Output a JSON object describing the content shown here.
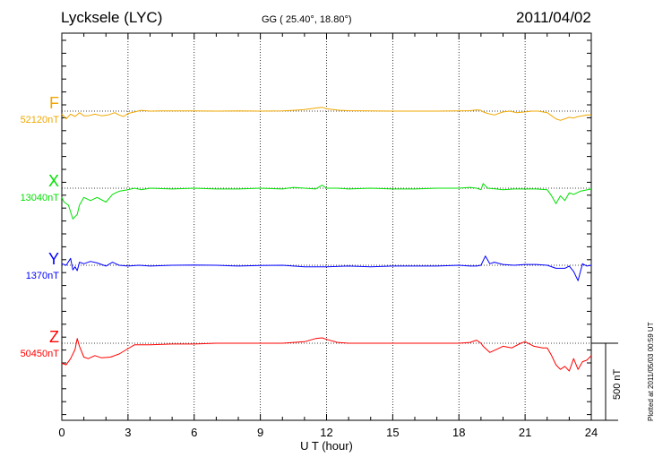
{
  "header": {
    "station": "Lycksele (LYC)",
    "coords": "GG ( 25.40°,  18.80°)",
    "date": "2011/04/02"
  },
  "plotted_note": "Plotted at 2011/05/03 00:59 UT",
  "scale_label": "500 nT",
  "chart_data": {
    "type": "line",
    "xlabel": "U T (hour)",
    "xlim": [
      0,
      24
    ],
    "xticks": [
      "0",
      "3",
      "6",
      "9",
      "12",
      "15",
      "18",
      "21",
      "24"
    ],
    "grid": true,
    "scale_bar_nT": 500,
    "series": [
      {
        "name": "F",
        "baseline": "52120nT",
        "color": "#f0a800",
        "x": [
          0,
          0.2,
          0.4,
          0.6,
          0.8,
          1.0,
          1.2,
          1.5,
          1.8,
          2.1,
          2.4,
          2.6,
          2.8,
          3.0,
          3.3,
          3.6,
          4.0,
          4.5,
          5,
          6,
          7,
          8,
          9,
          10,
          10.5,
          11,
          11.5,
          11.8,
          12,
          12.3,
          12.6,
          13,
          14,
          15,
          16,
          17,
          18,
          18.5,
          18.8,
          19,
          19.1,
          19.3,
          19.6,
          20,
          20.3,
          20.6,
          21,
          21.3,
          21.6,
          22,
          22.2,
          22.4,
          22.6,
          22.8,
          23,
          23.2,
          23.4,
          23.6,
          23.8,
          24
        ],
        "y": [
          -20,
          -50,
          -20,
          -35,
          -10,
          -30,
          -30,
          -20,
          -30,
          -25,
          -10,
          -25,
          -35,
          -15,
          -5,
          5,
          0,
          2,
          2,
          2,
          0,
          2,
          0,
          2,
          5,
          10,
          20,
          25,
          15,
          10,
          5,
          3,
          1,
          0,
          0,
          0,
          2,
          3,
          8,
          5,
          -5,
          -15,
          -25,
          -5,
          0,
          -10,
          -5,
          0,
          0,
          -10,
          -30,
          -50,
          -60,
          -50,
          -40,
          -45,
          -35,
          -30,
          -25,
          -25
        ]
      },
      {
        "name": "X",
        "baseline": "13040nT",
        "color": "#00e000",
        "x": [
          0,
          0.1,
          0.3,
          0.5,
          0.7,
          0.8,
          1.0,
          1.3,
          1.6,
          2.0,
          2.3,
          2.6,
          3.0,
          3.3,
          3.6,
          4.0,
          5,
          6,
          7,
          8,
          9,
          10,
          10.5,
          11,
          11.5,
          11.8,
          12,
          12.5,
          13,
          14,
          15,
          16,
          17,
          18,
          18.5,
          18.8,
          19.0,
          19.1,
          19.3,
          19.7,
          20,
          20.5,
          21,
          21.5,
          22,
          22.2,
          22.4,
          22.6,
          22.8,
          23,
          23.2,
          23.5,
          24
        ],
        "y": [
          -60,
          -90,
          -110,
          -200,
          -170,
          -110,
          -60,
          -80,
          -60,
          -90,
          -40,
          -20,
          -10,
          0,
          -10,
          0,
          -5,
          0,
          -5,
          -5,
          0,
          -5,
          5,
          0,
          -5,
          20,
          0,
          0,
          -5,
          0,
          -5,
          -5,
          0,
          0,
          5,
          0,
          -10,
          30,
          0,
          -5,
          -10,
          -5,
          -5,
          -5,
          -10,
          -50,
          -100,
          -50,
          -80,
          -30,
          -40,
          -20,
          -5
        ]
      },
      {
        "name": "Y",
        "baseline": "1370nT",
        "color": "#0000ff",
        "x": [
          0,
          0.2,
          0.4,
          0.5,
          0.6,
          0.7,
          0.8,
          1.0,
          1.3,
          1.6,
          2.0,
          2.3,
          2.6,
          3.0,
          3.5,
          4,
          5,
          6,
          7,
          8,
          9,
          10,
          11,
          12,
          13,
          14,
          15,
          16,
          17,
          18,
          18.5,
          18.8,
          19.0,
          19.2,
          19.4,
          19.6,
          20,
          20.5,
          21,
          21.5,
          22,
          22.4,
          22.8,
          23.0,
          23.2,
          23.4,
          23.6,
          23.8,
          24
        ],
        "y": [
          10,
          0,
          45,
          -30,
          -10,
          -35,
          20,
          10,
          25,
          15,
          -5,
          20,
          0,
          -5,
          0,
          -5,
          0,
          2,
          0,
          -5,
          -2,
          0,
          -10,
          -10,
          -5,
          -10,
          -5,
          -5,
          -5,
          0,
          -5,
          -5,
          0,
          60,
          10,
          20,
          5,
          0,
          5,
          5,
          0,
          -20,
          -20,
          -5,
          -40,
          -100,
          10,
          -5,
          0
        ]
      },
      {
        "name": "Z",
        "baseline": "50450nT",
        "color": "#ff0000",
        "x": [
          0,
          0.2,
          0.4,
          0.6,
          0.7,
          0.8,
          1.0,
          1.2,
          1.5,
          1.8,
          2.2,
          2.6,
          3.0,
          3.3,
          3.6,
          4.0,
          5,
          6,
          7,
          8,
          9,
          10,
          10.5,
          11,
          11.5,
          11.8,
          12,
          12.5,
          13,
          14,
          15,
          16,
          17,
          18,
          18.5,
          18.8,
          19.0,
          19.1,
          19.4,
          19.7,
          20,
          20.4,
          20.8,
          21,
          21.4,
          21.8,
          22,
          22.2,
          22.4,
          22.6,
          22.8,
          23,
          23.2,
          23.4,
          23.6,
          23.8,
          24
        ],
        "y": [
          -130,
          -140,
          -100,
          -40,
          30,
          -20,
          -90,
          -100,
          -80,
          -95,
          -90,
          -70,
          -35,
          -10,
          -10,
          -10,
          -5,
          -5,
          0,
          0,
          0,
          0,
          5,
          10,
          30,
          35,
          25,
          5,
          0,
          0,
          0,
          0,
          0,
          0,
          5,
          20,
          0,
          -20,
          -60,
          -40,
          -20,
          -30,
          0,
          10,
          -20,
          -30,
          -30,
          -80,
          -140,
          -170,
          -150,
          -180,
          -100,
          -170,
          -120,
          -110,
          -80
        ]
      }
    ]
  }
}
